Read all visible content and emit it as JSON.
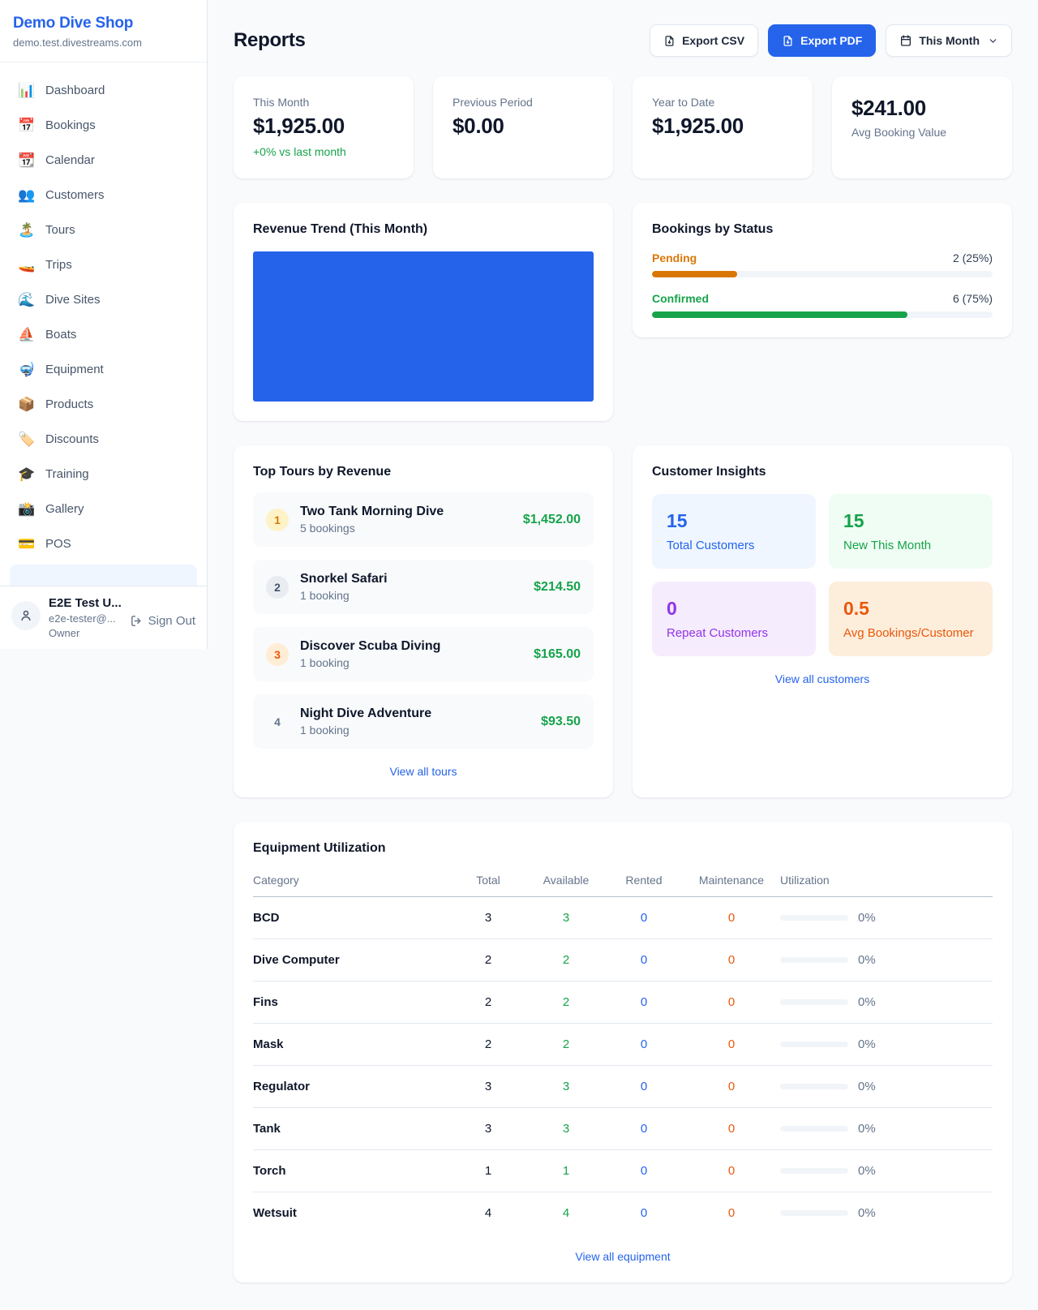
{
  "palette": {
    "accent_blue": "#2563eb",
    "green": "#16a34a",
    "amber": "#d97706",
    "orange": "#ea580c",
    "purple": "#9333ea",
    "page_bg": "#f8fafc"
  },
  "sidebar": {
    "brand": {
      "name": "Demo Dive Shop",
      "domain": "demo.test.divestreams.com"
    },
    "nav": [
      {
        "label": "Dashboard",
        "icon": "📊"
      },
      {
        "label": "Bookings",
        "icon": "📅"
      },
      {
        "label": "Calendar",
        "icon": "📆"
      },
      {
        "label": "Customers",
        "icon": "👥"
      },
      {
        "label": "Tours",
        "icon": "🏝️"
      },
      {
        "label": "Trips",
        "icon": "🚤"
      },
      {
        "label": "Dive Sites",
        "icon": "🌊"
      },
      {
        "label": "Boats",
        "icon": "⛵"
      },
      {
        "label": "Equipment",
        "icon": "🤿"
      },
      {
        "label": "Products",
        "icon": "📦"
      },
      {
        "label": "Discounts",
        "icon": "🏷️"
      },
      {
        "label": "Training",
        "icon": "🎓"
      },
      {
        "label": "Gallery",
        "icon": "📸"
      },
      {
        "label": "POS",
        "icon": "💳"
      }
    ],
    "user": {
      "name": "E2E Test U...",
      "email": "e2e-tester@...",
      "role": "Owner",
      "sign_out": "Sign Out"
    }
  },
  "header": {
    "title": "Reports",
    "export_csv": "Export CSV",
    "export_pdf": "Export PDF",
    "period": "This Month"
  },
  "stats": [
    {
      "label": "This Month",
      "value": "$1,925.00",
      "delta": "+0% vs last month"
    },
    {
      "label": "Previous Period",
      "value": "$0.00"
    },
    {
      "label": "Year to Date",
      "value": "$1,925.00"
    },
    {
      "label": "Avg Booking Value",
      "value": "$241.00"
    }
  ],
  "revenue_trend": {
    "title": "Revenue Trend (This Month)"
  },
  "bookings_by_status": {
    "title": "Bookings by Status",
    "rows": [
      {
        "label": "Pending",
        "count": "2 (25%)",
        "pct": 25,
        "color": "#d97706"
      },
      {
        "label": "Confirmed",
        "count": "6 (75%)",
        "pct": 75,
        "color": "#16a34a"
      }
    ]
  },
  "top_tours": {
    "title": "Top Tours by Revenue",
    "items": [
      {
        "rank": "1",
        "name": "Two Tank Morning Dive",
        "bookings": "5 bookings",
        "amount": "$1,452.00"
      },
      {
        "rank": "2",
        "name": "Snorkel Safari",
        "bookings": "1 booking",
        "amount": "$214.50"
      },
      {
        "rank": "3",
        "name": "Discover Scuba Diving",
        "bookings": "1 booking",
        "amount": "$165.00"
      },
      {
        "rank": "4",
        "name": "Night Dive Adventure",
        "bookings": "1 booking",
        "amount": "$93.50"
      }
    ],
    "link": "View all tours"
  },
  "customer_insights": {
    "title": "Customer Insights",
    "tiles": [
      {
        "value": "15",
        "label": "Total Customers"
      },
      {
        "value": "15",
        "label": "New This Month"
      },
      {
        "value": "0",
        "label": "Repeat Customers"
      },
      {
        "value": "0.5",
        "label": "Avg Bookings/Customer"
      }
    ],
    "link": "View all customers"
  },
  "equipment": {
    "title": "Equipment Utilization",
    "columns": [
      "Category",
      "Total",
      "Available",
      "Rented",
      "Maintenance",
      "Utilization"
    ],
    "rows": [
      {
        "category": "BCD",
        "total": "3",
        "available": "3",
        "rented": "0",
        "maintenance": "0",
        "utilization": "0%",
        "pct": 0
      },
      {
        "category": "Dive Computer",
        "total": "2",
        "available": "2",
        "rented": "0",
        "maintenance": "0",
        "utilization": "0%",
        "pct": 0
      },
      {
        "category": "Fins",
        "total": "2",
        "available": "2",
        "rented": "0",
        "maintenance": "0",
        "utilization": "0%",
        "pct": 0
      },
      {
        "category": "Mask",
        "total": "2",
        "available": "2",
        "rented": "0",
        "maintenance": "0",
        "utilization": "0%",
        "pct": 0
      },
      {
        "category": "Regulator",
        "total": "3",
        "available": "3",
        "rented": "0",
        "maintenance": "0",
        "utilization": "0%",
        "pct": 0
      },
      {
        "category": "Tank",
        "total": "3",
        "available": "3",
        "rented": "0",
        "maintenance": "0",
        "utilization": "0%",
        "pct": 0
      },
      {
        "category": "Torch",
        "total": "1",
        "available": "1",
        "rented": "0",
        "maintenance": "0",
        "utilization": "0%",
        "pct": 0
      },
      {
        "category": "Wetsuit",
        "total": "4",
        "available": "4",
        "rented": "0",
        "maintenance": "0",
        "utilization": "0%",
        "pct": 0
      }
    ],
    "link": "View all equipment"
  },
  "chart_data": [
    {
      "type": "bar",
      "title": "Revenue Trend (This Month)",
      "categories": [
        "This Month"
      ],
      "values": [
        1925
      ],
      "xlabel": "",
      "ylabel": "",
      "note": "single full-width solid bar, no axes or tick labels visible",
      "bar_color": "#2563eb"
    },
    {
      "type": "bar",
      "title": "Bookings by Status",
      "categories": [
        "Pending",
        "Confirmed"
      ],
      "values": [
        2,
        6
      ],
      "percent": [
        25,
        75
      ],
      "colors": [
        "#d97706",
        "#16a34a"
      ]
    }
  ]
}
